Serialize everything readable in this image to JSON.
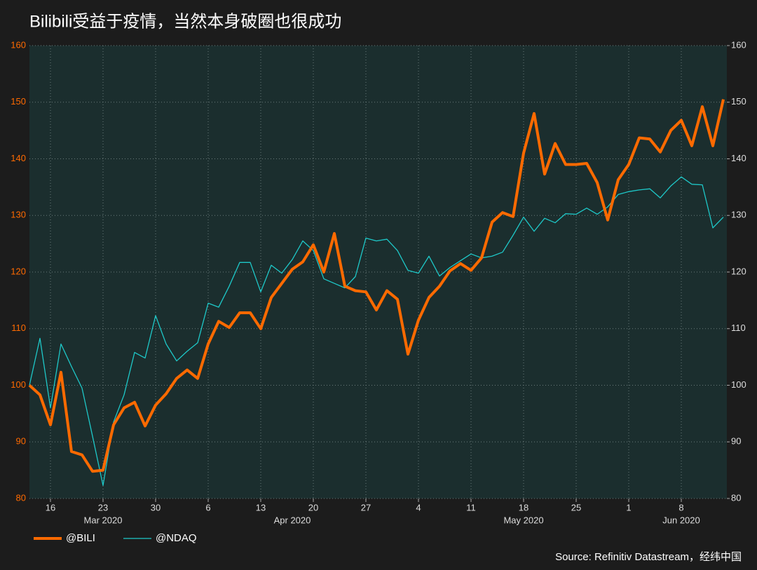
{
  "chart_data": {
    "type": "line",
    "title": "Bilibili受益于疫情，当然本身破圈也很成功",
    "source": "Source: Refinitiv Datastream，经纬中国",
    "x": [
      "2020-03-12",
      "2020-03-13",
      "2020-03-16",
      "2020-03-17",
      "2020-03-18",
      "2020-03-19",
      "2020-03-20",
      "2020-03-23",
      "2020-03-24",
      "2020-03-25",
      "2020-03-26",
      "2020-03-27",
      "2020-03-30",
      "2020-03-31",
      "2020-04-01",
      "2020-04-02",
      "2020-04-03",
      "2020-04-06",
      "2020-04-07",
      "2020-04-08",
      "2020-04-09",
      "2020-04-10",
      "2020-04-13",
      "2020-04-14",
      "2020-04-15",
      "2020-04-16",
      "2020-04-17",
      "2020-04-20",
      "2020-04-21",
      "2020-04-22",
      "2020-04-23",
      "2020-04-24",
      "2020-04-27",
      "2020-04-28",
      "2020-04-29",
      "2020-04-30",
      "2020-05-01",
      "2020-05-04",
      "2020-05-05",
      "2020-05-06",
      "2020-05-07",
      "2020-05-08",
      "2020-05-11",
      "2020-05-12",
      "2020-05-13",
      "2020-05-14",
      "2020-05-15",
      "2020-05-18",
      "2020-05-19",
      "2020-05-20",
      "2020-05-21",
      "2020-05-22",
      "2020-05-25",
      "2020-05-26",
      "2020-05-27",
      "2020-05-28",
      "2020-05-29",
      "2020-06-01",
      "2020-06-02",
      "2020-06-03",
      "2020-06-04",
      "2020-06-05",
      "2020-06-08",
      "2020-06-09",
      "2020-06-10",
      "2020-06-11",
      "2020-06-12"
    ],
    "xticks": [
      {
        "value": "2020-03-16",
        "label": "16"
      },
      {
        "value": "2020-03-23",
        "label": "23"
      },
      {
        "value": "2020-03-30",
        "label": "30"
      },
      {
        "value": "2020-04-06",
        "label": "6"
      },
      {
        "value": "2020-04-13",
        "label": "13"
      },
      {
        "value": "2020-04-20",
        "label": "20"
      },
      {
        "value": "2020-04-27",
        "label": "27"
      },
      {
        "value": "2020-05-04",
        "label": "4"
      },
      {
        "value": "2020-05-11",
        "label": "11"
      },
      {
        "value": "2020-05-18",
        "label": "18"
      },
      {
        "value": "2020-05-25",
        "label": "25"
      },
      {
        "value": "2020-06-01",
        "label": "1"
      },
      {
        "value": "2020-06-08",
        "label": "8"
      }
    ],
    "month_labels": [
      {
        "value": "2020-03-23",
        "label": "Mar 2020"
      },
      {
        "value": "2020-04-16",
        "label": "Apr 2020"
      },
      {
        "value": "2020-05-18",
        "label": "May 2020"
      },
      {
        "value": "2020-06-08",
        "label": "Jun 2020"
      }
    ],
    "ylim": [
      80,
      160
    ],
    "yticks": [
      80,
      90,
      100,
      110,
      120,
      130,
      140,
      150,
      160
    ],
    "y2lim": [
      80,
      160
    ],
    "y2ticks": [
      80,
      90,
      100,
      110,
      120,
      130,
      140,
      150,
      160
    ],
    "grid": true,
    "series": [
      {
        "name": "@BILI",
        "color": "#ff6a00",
        "values": [
          100,
          98.3,
          93,
          102.3,
          88.3,
          87.7,
          84.8,
          85,
          93,
          96,
          97,
          92.8,
          96.5,
          98.5,
          101.2,
          102.7,
          101.2,
          107.3,
          111.3,
          110.2,
          112.8,
          112.8,
          110,
          115.5,
          118,
          120.5,
          121.8,
          124.8,
          120,
          126.8,
          117.5,
          116.7,
          116.5,
          113.3,
          116.7,
          115.2,
          105.5,
          111.5,
          115.5,
          117.5,
          120.2,
          121.5,
          120.3,
          122.5,
          128.8,
          130.5,
          129.8,
          141,
          148,
          137.3,
          142.7,
          139,
          139,
          139.2,
          135.8,
          129.2,
          136.3,
          139,
          143.7,
          143.5,
          141.2,
          145,
          146.8,
          142.3,
          149.2,
          142.3,
          150.5
        ]
      },
      {
        "name": "@NDAQ",
        "color": "#1ec8c8",
        "values": [
          100,
          108.3,
          96,
          107.3,
          103.3,
          99.5,
          91,
          82.3,
          93.5,
          98.3,
          105.8,
          104.8,
          112.3,
          107.3,
          104.3,
          106,
          107.5,
          114.5,
          113.8,
          117.5,
          121.7,
          121.7,
          116.5,
          121.2,
          119.8,
          122.2,
          125.5,
          123.8,
          118.8,
          118,
          117.2,
          119.2,
          126,
          125.5,
          125.8,
          123.8,
          120.3,
          119.8,
          122.8,
          119.3,
          120.8,
          122,
          123.2,
          122.5,
          122.8,
          123.5,
          126.5,
          129.7,
          127.2,
          129.5,
          128.7,
          130.3,
          130.2,
          131.3,
          130.2,
          131.5,
          133.7,
          134.2,
          134.5,
          134.7,
          133.1,
          135.2,
          136.8,
          135.5,
          135.4,
          127.8,
          129.7
        ]
      }
    ]
  }
}
